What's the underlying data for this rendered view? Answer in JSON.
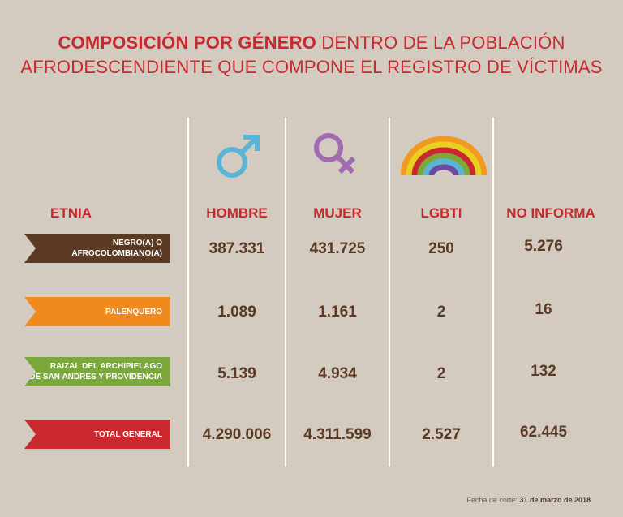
{
  "title": {
    "bold_part": "COMPOSICIÓN POR GÉNERO",
    "line1_rest": "DENTRO DE LA POBLACIÓN",
    "line2": "AFRODESCENDIENTE QUE COMPONE EL REGISTRO DE VÍCTIMAS"
  },
  "headers": {
    "etnia": "ETNIA",
    "hombre": "HOMBRE",
    "mujer": "MUJER",
    "lgbti": "LGBTI",
    "no_informa": "NO INFORMA"
  },
  "rows": [
    {
      "label_line1": "NEGRO(A) O",
      "label_line2": "AFROCOLOMBIANO(A)",
      "color": "#5a3a22",
      "hombre": "387.331",
      "mujer": "431.725",
      "lgbti": "250",
      "no_informa": "5.276"
    },
    {
      "label_line1": "PALENQUERO",
      "label_line2": "",
      "color": "#f08a1c",
      "hombre": "1.089",
      "mujer": "1.161",
      "lgbti": "2",
      "no_informa": "16"
    },
    {
      "label_line1": "RAIZAL DEL ARCHIPIELAGO",
      "label_line2": "DE SAN ANDRES Y PROVIDENCIA",
      "color": "#7aa83a",
      "hombre": "5.139",
      "mujer": "4.934",
      "lgbti": "2",
      "no_informa": "132"
    },
    {
      "label_line1": "TOTAL GENERAL",
      "label_line2": "",
      "color": "#c8282e",
      "hombre": "4.290.006",
      "mujer": "4.311.599",
      "lgbti": "2.527",
      "no_informa": "62.445"
    }
  ],
  "footnote": {
    "prefix": "Fecha de corte: ",
    "date": "31 de marzo de 2018"
  },
  "colors": {
    "accent": "#c8282e",
    "text_dark": "#5a3a22",
    "background": "#d3cac0",
    "male_icon": "#5ab4d6",
    "female_icon": "#a06bb0"
  },
  "icons": [
    "male-symbol-icon",
    "female-symbol-icon",
    "rainbow-icon"
  ]
}
